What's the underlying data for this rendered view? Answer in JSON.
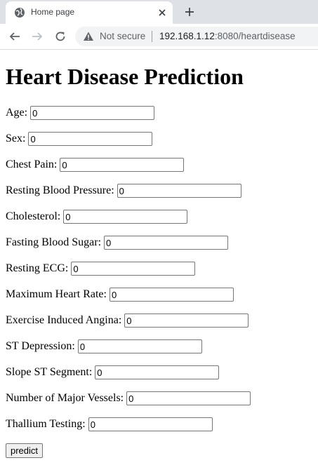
{
  "browser": {
    "tab_title": "Home page",
    "security_label": "Not secure",
    "url_host": "192.168.1.12",
    "url_rest": ":8080/heartdisease"
  },
  "page": {
    "title": "Heart Disease Prediction",
    "fields": [
      {
        "label": "Age:",
        "value": "0"
      },
      {
        "label": "Sex:",
        "value": "0"
      },
      {
        "label": "Chest Pain:",
        "value": "0"
      },
      {
        "label": "Resting Blood Pressure:",
        "value": "0"
      },
      {
        "label": "Cholesterol:",
        "value": "0"
      },
      {
        "label": "Fasting Blood Sugar:",
        "value": "0"
      },
      {
        "label": "Resting ECG:",
        "value": "0"
      },
      {
        "label": "Maximum Heart Rate:",
        "value": "0"
      },
      {
        "label": "Exercise Induced Angina:",
        "value": "0"
      },
      {
        "label": "ST Depression:",
        "value": "0"
      },
      {
        "label": "Slope ST Segment:",
        "value": "0"
      },
      {
        "label": "Number of Major Vessels:",
        "value": "0"
      },
      {
        "label": "Thallium Testing:",
        "value": "0"
      }
    ],
    "submit_label": "predict"
  }
}
